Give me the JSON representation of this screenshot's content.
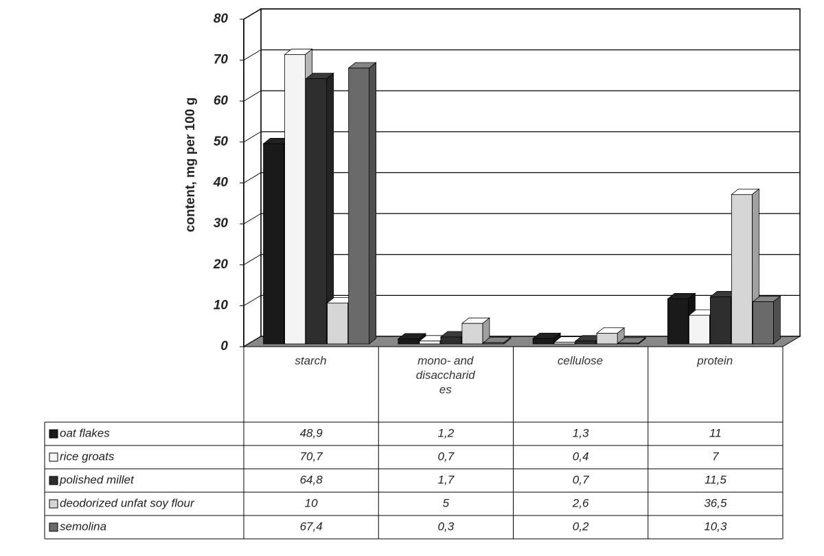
{
  "chart_data": {
    "type": "bar3d",
    "y_label": "content, mg per 100 g",
    "categories": [
      "starch",
      "mono- and disaccharides",
      "cellulose",
      "protein"
    ],
    "ylim": [
      0,
      80
    ],
    "yticks": [
      0,
      10,
      20,
      30,
      40,
      50,
      60,
      70,
      80
    ],
    "grid": true,
    "series": [
      {
        "name": "oat flakes",
        "color": "#1a1a1a",
        "values": [
          48.9,
          1.2,
          1.3,
          11
        ],
        "value_labels": [
          "48,9",
          "1,2",
          "1,3",
          "11"
        ]
      },
      {
        "name": "rice groats",
        "color": "#f4f4f4",
        "values": [
          70.7,
          0.7,
          0.4,
          7
        ],
        "value_labels": [
          "70,7",
          "0,7",
          "0,4",
          "7"
        ]
      },
      {
        "name": "polished millet",
        "color": "#2e2e2e",
        "values": [
          64.8,
          1.7,
          0.7,
          11.5
        ],
        "value_labels": [
          "64,8",
          "1,7",
          "0,7",
          "11,5"
        ]
      },
      {
        "name": "deodorized unfat soy flour",
        "color": "#d6d6d6",
        "values": [
          10,
          5,
          2.6,
          36.5
        ],
        "value_labels": [
          "10",
          "5",
          "2,6",
          "36,5"
        ]
      },
      {
        "name": "semolina",
        "color": "#6a6a6a",
        "values": [
          67.4,
          0.3,
          0.2,
          10.3
        ],
        "value_labels": [
          "67,4",
          "0,3",
          "0,2",
          "10,3"
        ]
      }
    ]
  }
}
